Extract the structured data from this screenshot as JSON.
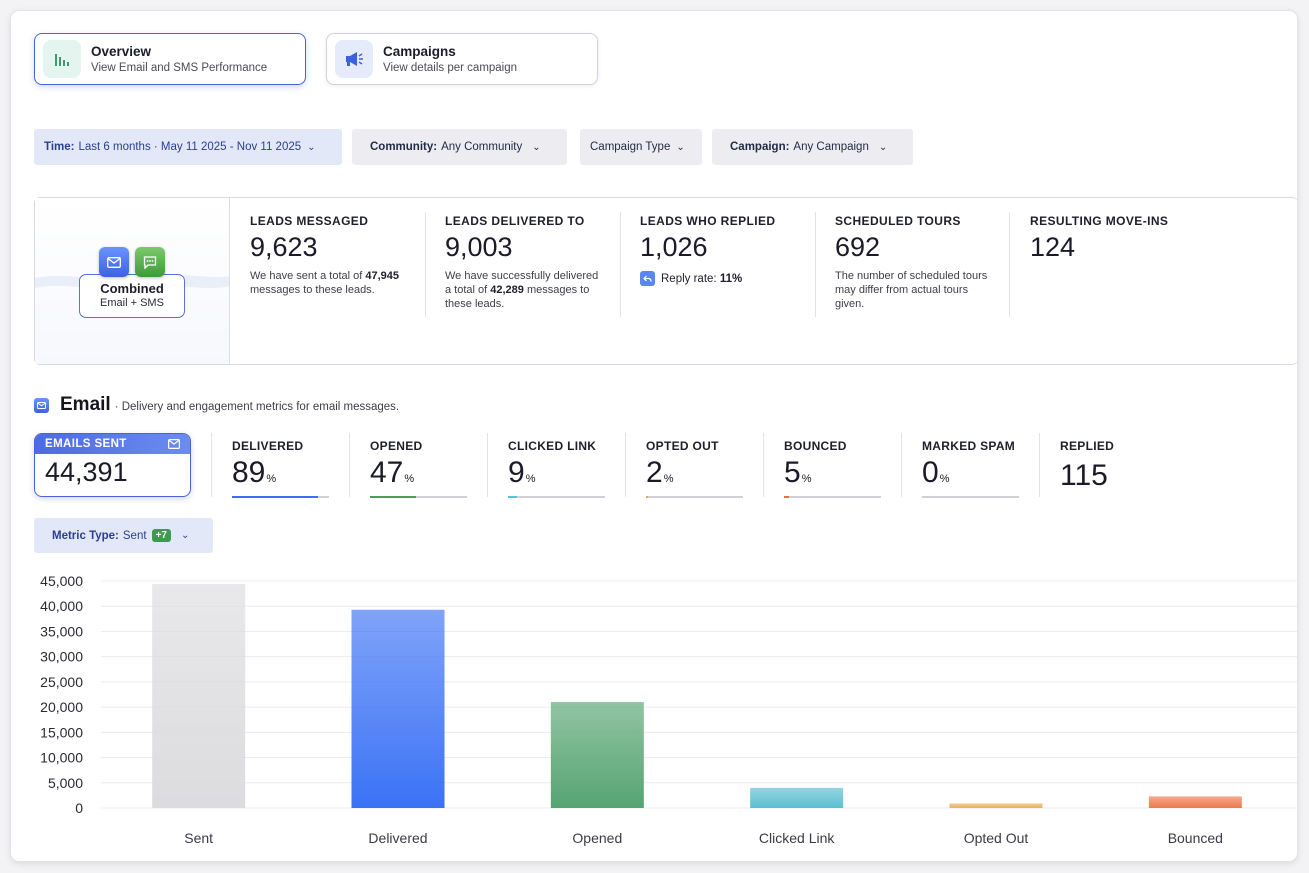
{
  "tabs": [
    {
      "title": "Overview",
      "subtitle": "View Email and SMS Performance"
    },
    {
      "title": "Campaigns",
      "subtitle": "View details per campaign"
    }
  ],
  "filters": {
    "time": {
      "label": "Time:",
      "value": "Last 6 months · May 11 2025 - Nov 11 2025"
    },
    "community": {
      "label": "Community:",
      "value": "Any Community"
    },
    "campaign_type": {
      "value": "Campaign Type"
    },
    "campaign": {
      "label": "Campaign:",
      "value": "Any Campaign"
    }
  },
  "combined": {
    "title": "Combined",
    "subtitle": "Email + SMS",
    "stats": [
      {
        "label": "LEADS MESSAGED",
        "value": "9,623",
        "desc_pre": "We have sent a total of",
        "desc_bold": "47,945",
        "desc_post": "messages to these leads."
      },
      {
        "label": "LEADS DELIVERED TO",
        "value": "9,003",
        "desc_pre": "We have successfully delivered a total of",
        "desc_bold": "42,289",
        "desc_post": "messages to these leads."
      },
      {
        "label": "LEADS WHO REPLIED",
        "value": "1,026",
        "reply_label": "Reply rate:",
        "reply_value": "11%"
      },
      {
        "label": "SCHEDULED TOURS",
        "value": "692",
        "desc": "The number of scheduled tours may differ from actual tours given."
      },
      {
        "label": "RESULTING MOVE-INS",
        "value": "124"
      }
    ]
  },
  "email": {
    "title": "Email",
    "description": "· Delivery and engagement metrics for email messages.",
    "sent": {
      "label": "EMAILS SENT",
      "value": "44,391"
    },
    "metrics": [
      {
        "label": "DELIVERED",
        "value": "89",
        "unit": "%",
        "fraction": 0.89,
        "color": "#3b6ff0"
      },
      {
        "label": "OPENED",
        "value": "47",
        "unit": "%",
        "fraction": 0.47,
        "color": "#4f9b5c"
      },
      {
        "label": "CLICKED LINK",
        "value": "9",
        "unit": "%",
        "fraction": 0.09,
        "color": "#5bc3d8"
      },
      {
        "label": "OPTED OUT",
        "value": "2",
        "unit": "%",
        "fraction": 0.02,
        "color": "#e8a849"
      },
      {
        "label": "BOUNCED",
        "value": "5",
        "unit": "%",
        "fraction": 0.05,
        "color": "#ee6b45"
      },
      {
        "label": "MARKED SPAM",
        "value": "0",
        "unit": "%",
        "fraction": 0.0,
        "color": "#999999"
      },
      {
        "label": "REPLIED",
        "value": "115"
      }
    ],
    "metric_type": {
      "label": "Metric Type:",
      "value": "Sent",
      "badge": "+7"
    }
  },
  "chart_data": {
    "type": "bar",
    "categories": [
      "Sent",
      "Delivered",
      "Opened",
      "Clicked Link",
      "Opted Out",
      "Bounced"
    ],
    "values": [
      44391,
      39300,
      21000,
      4000,
      900,
      2300
    ],
    "colors": [
      "#dcdcdf",
      "#3b72f5",
      "#56a472",
      "#5bbfd1",
      "#eab15a",
      "#ee7a4d"
    ],
    "yticks": [
      "45,000",
      "40,000",
      "35,000",
      "30,000",
      "25,000",
      "20,000",
      "15,000",
      "10,000",
      "5,000",
      "0"
    ],
    "ylim": [
      0,
      45000
    ],
    "title": "",
    "xlabel": "",
    "ylabel": ""
  }
}
